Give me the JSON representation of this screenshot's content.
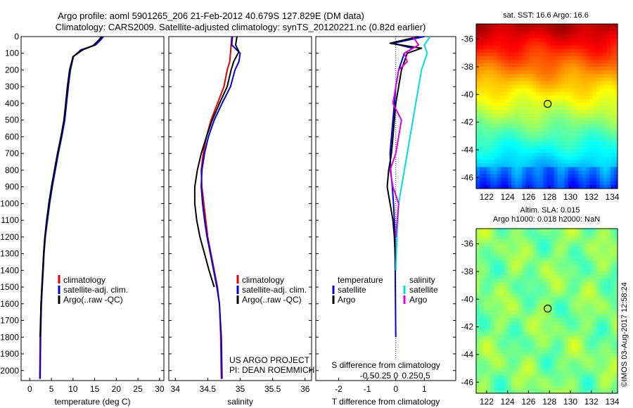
{
  "header": {
    "line1": "Argo profile: aoml 5901265_206 21-Feb-2012 40.679S 127.829E (DM data)",
    "line2": "Climatology: CARS2009. Satellite-adjusted climatology: synTS_20120221.nc (0.82d earlier)"
  },
  "colors": {
    "climatology": "#dd0000",
    "satellite": "#0000dd",
    "argo": "#000000",
    "sat_salinity": "#00dddd",
    "argo_salinity": "#dd00dd"
  },
  "legend": {
    "climatology": "climatology",
    "satellite_adj": "satellite-adj. clim.",
    "argo_raw": "Argo(..raw -QC)",
    "temperature": "temperature",
    "salinity": "salinity",
    "satellite": "satellite",
    "argo": "Argo"
  },
  "credits": {
    "line1": "US ARGO PROJECT",
    "line2": "PI: DEAN ROEMMICH"
  },
  "timestamp": "©IMOS 03-Aug-2017 12:58:24",
  "sst_map": {
    "title": "sat. SST: 16.6 Argo: 16.6"
  },
  "sla_map": {
    "title_line1": "Altim. SLA: 0.015",
    "title_line2": "Argo h1000: 0.018 h2000: NaN"
  },
  "chart_data": [
    {
      "type": "line",
      "title": "",
      "xlabel": "temperature (deg C)",
      "ylabel": "",
      "xlim": [
        -2,
        31
      ],
      "ylim": [
        2060,
        0
      ],
      "xticks": [
        0,
        5,
        10,
        15,
        20,
        25,
        30
      ],
      "yticks": [
        0,
        100,
        200,
        300,
        400,
        500,
        600,
        700,
        800,
        900,
        1000,
        1100,
        1200,
        1300,
        1400,
        1500,
        1600,
        1700,
        1800,
        1900,
        2000
      ],
      "series": [
        {
          "name": "climatology",
          "color": "#dd0000",
          "x": [
            16.8,
            16.2,
            15.0,
            12.0,
            10.0,
            9.3,
            8.8,
            8.4,
            8.0,
            7.3,
            6.5,
            5.8,
            5.1,
            4.5,
            4.0,
            3.5,
            3.2,
            3.0,
            2.8,
            2.6,
            2.5,
            2.4,
            2.3
          ],
          "y": [
            0,
            20,
            50,
            80,
            120,
            200,
            300,
            400,
            500,
            600,
            700,
            800,
            900,
            1000,
            1100,
            1200,
            1300,
            1400,
            1500,
            1600,
            1700,
            1800,
            2050
          ]
        },
        {
          "name": "satellite-adj. clim.",
          "color": "#0000dd",
          "x": [
            17.0,
            16.4,
            15.2,
            11.8,
            10.1,
            9.4,
            8.9,
            8.5,
            8.1,
            7.4,
            6.6,
            5.9,
            5.2,
            4.6,
            4.1,
            3.6,
            3.3,
            3.1,
            2.9,
            2.7,
            2.6,
            2.5,
            2.4
          ],
          "y": [
            0,
            20,
            50,
            80,
            120,
            200,
            300,
            400,
            500,
            600,
            700,
            800,
            900,
            1000,
            1100,
            1200,
            1300,
            1400,
            1500,
            1600,
            1700,
            1800,
            2050
          ]
        },
        {
          "name": "Argo(..raw -QC)",
          "color": "#000000",
          "x": [
            16.6,
            16.0,
            14.6,
            12.2,
            10.0,
            9.2,
            8.7,
            8.3,
            7.9,
            7.2,
            6.4,
            5.7,
            5.0,
            4.4,
            3.9,
            3.5,
            3.2,
            3.0,
            2.8,
            2.6,
            2.5,
            2.4
          ],
          "y": [
            0,
            20,
            55,
            80,
            120,
            200,
            300,
            400,
            500,
            600,
            700,
            800,
            900,
            1000,
            1100,
            1200,
            1300,
            1400,
            1500,
            1600,
            1700,
            1800
          ]
        }
      ]
    },
    {
      "type": "line",
      "title": "",
      "xlabel": "salinity",
      "ylabel": "",
      "xlim": [
        33.9,
        36.1
      ],
      "ylim": [
        2060,
        0
      ],
      "xticks": [
        34,
        34.5,
        35,
        35.5,
        36
      ],
      "xticklabels": [
        "34",
        "34.5",
        "35",
        "35.5",
        "36"
      ],
      "series": [
        {
          "name": "climatology",
          "color": "#dd0000",
          "x": [
            34.87,
            34.86,
            34.85,
            34.84,
            34.8,
            34.75,
            34.65,
            34.55,
            34.48,
            34.43,
            34.4,
            34.41,
            34.44,
            34.47,
            34.5,
            34.55,
            34.6,
            34.65,
            34.68,
            34.7,
            34.71
          ],
          "y": [
            0,
            50,
            100,
            150,
            200,
            300,
            400,
            500,
            600,
            700,
            800,
            900,
            1000,
            1100,
            1200,
            1300,
            1400,
            1500,
            1600,
            1800,
            2050
          ]
        },
        {
          "name": "satellite-adj. clim.",
          "color": "#0000dd",
          "x": [
            34.88,
            34.87,
            35.0,
            34.98,
            34.92,
            34.85,
            34.72,
            34.6,
            34.51,
            34.45,
            34.41,
            34.4,
            34.42,
            34.45,
            34.49,
            34.54,
            34.59,
            34.64,
            34.68,
            34.71,
            34.72
          ],
          "y": [
            0,
            50,
            100,
            150,
            200,
            300,
            400,
            500,
            600,
            700,
            800,
            900,
            1000,
            1100,
            1200,
            1300,
            1400,
            1500,
            1600,
            1800,
            2050
          ]
        },
        {
          "name": "Argo(..raw -QC)",
          "color": "#000000",
          "x": [
            34.95,
            34.93,
            34.98,
            34.9,
            34.86,
            34.8,
            34.68,
            34.57,
            34.48,
            34.4,
            34.34,
            34.3,
            34.3,
            34.33,
            34.38,
            34.45,
            34.52,
            34.6
          ],
          "y": [
            0,
            50,
            90,
            150,
            200,
            300,
            400,
            500,
            600,
            700,
            800,
            900,
            1000,
            1100,
            1200,
            1300,
            1400,
            1500
          ]
        }
      ]
    },
    {
      "type": "line",
      "title": "",
      "xlabel": "T difference from climatology",
      "ylabel": "",
      "x2label": "S difference from climatology",
      "xlim": [
        -2.8,
        2.1
      ],
      "ylim": [
        2060,
        0
      ],
      "xticks": [
        -2,
        -1,
        0,
        1
      ],
      "x2ticks": [
        -0.5,
        -0.25,
        0,
        0.25,
        0.5
      ],
      "series": [
        {
          "name": "temperature satellite",
          "color": "#0000dd",
          "x": [
            1.0,
            -0.1,
            0.6,
            0.3,
            0.1,
            0.0,
            -0.05,
            -0.1,
            -0.15,
            -0.2,
            -0.18,
            -0.12,
            -0.08,
            -0.05,
            -0.03,
            -0.02,
            -0.01,
            0.0
          ],
          "y": [
            0,
            40,
            70,
            100,
            200,
            300,
            400,
            500,
            600,
            700,
            800,
            900,
            1000,
            1100,
            1200,
            1400,
            1600,
            1800
          ]
        },
        {
          "name": "temperature Argo",
          "color": "#000000",
          "x": [
            0.8,
            -0.2,
            0.9,
            0.4,
            0.2,
            0.1,
            0.0,
            -0.05,
            -0.1,
            -0.15,
            -0.25,
            -0.3,
            -0.2,
            -0.1,
            -0.05,
            0.0
          ],
          "y": [
            0,
            40,
            70,
            100,
            200,
            300,
            400,
            500,
            600,
            700,
            800,
            900,
            1000,
            1100,
            1200,
            1400
          ]
        },
        {
          "name": "salinity satellite",
          "color": "#00dddd",
          "x": [
            0.6,
            0.5,
            0.55,
            0.5,
            0.45,
            0.4,
            0.35,
            0.3,
            0.25,
            0.2,
            0.15,
            0.1,
            0.05,
            0.02,
            0.0
          ],
          "y": [
            0,
            50,
            100,
            150,
            200,
            300,
            400,
            500,
            600,
            700,
            800,
            900,
            1000,
            1200,
            1400
          ]
        },
        {
          "name": "salinity Argo",
          "color": "#dd00dd",
          "x": [
            0.3,
            0.4,
            0.15,
            0.2,
            0.05,
            0.0,
            -0.05,
            0.1,
            0.05,
            0.0,
            -0.1,
            -0.05,
            0.05,
            0.0
          ],
          "y": [
            0,
            50,
            100,
            150,
            200,
            300,
            400,
            500,
            600,
            700,
            800,
            900,
            1000,
            1200
          ]
        }
      ]
    },
    {
      "type": "heatmap",
      "title": "sat. SST: 16.6 Argo: 16.6",
      "xticks": [
        122,
        124,
        126,
        128,
        130,
        132,
        134
      ],
      "yticks": [
        -36,
        -38,
        -40,
        -42,
        -44,
        -46
      ],
      "xlim": [
        121,
        134.5
      ],
      "ylim": [
        -46.8,
        -34.9
      ],
      "marker": {
        "lon": 127.829,
        "lat": -40.679
      }
    },
    {
      "type": "heatmap",
      "title": "Altim. SLA: 0.015 / Argo h1000: 0.018 h2000: NaN",
      "xticks": [
        122,
        124,
        126,
        128,
        130,
        132,
        134
      ],
      "yticks": [
        -36,
        -38,
        -40,
        -42,
        -44,
        -46
      ],
      "xlim": [
        121,
        134.5
      ],
      "ylim": [
        -46.8,
        -34.9
      ],
      "marker": {
        "lon": 127.829,
        "lat": -40.679
      }
    }
  ]
}
